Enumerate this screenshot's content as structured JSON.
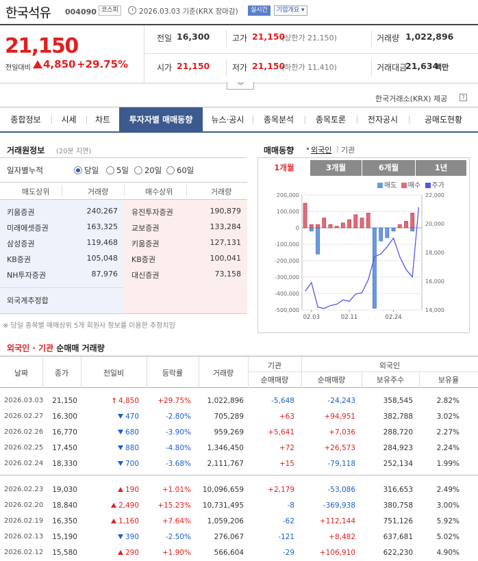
{
  "header": {
    "name": "한국석유",
    "code": "004090",
    "market": "코스피",
    "base_date": "2026.03.03 기준(KRX 장마감)",
    "realtime": "실시간",
    "company_info": "기업개요 ▾"
  },
  "price": {
    "current": "21,150",
    "compare_label": "전일대비",
    "change": "4,850",
    "change_pct": "+29.75%",
    "color_up": "#e02020",
    "color_down": "#1a5fc8"
  },
  "stats": [
    {
      "label": "전일",
      "value": "16,300",
      "sub": "",
      "color": "#333"
    },
    {
      "label": "고가",
      "value": "21,150",
      "sub": "(상한가 21,150)",
      "color": "#e02020"
    },
    {
      "label": "거래량",
      "value": "1,022,896",
      "sub": "",
      "color": "#333"
    },
    {
      "label": "시가",
      "value": "21,150",
      "sub": "",
      "color": "#e02020"
    },
    {
      "label": "저가",
      "value": "21,150",
      "sub": "(하한가 11,410)",
      "color": "#e02020"
    },
    {
      "label": "거래대금",
      "value": "21,634",
      "sub": "백만",
      "color": "#333"
    }
  ],
  "source": "한국거래소(KRX) 제공",
  "tabs": [
    "종합정보",
    "시세",
    "차트",
    "투자자별 매매동향",
    "뉴스·공시",
    "종목분석",
    "종목토론",
    "전자공시",
    "공매도현황"
  ],
  "active_tab": 3,
  "broker": {
    "title": "거래원정보",
    "delay": "(20분 지연)",
    "daily_label": "일자별누적",
    "periods": [
      "당일",
      "5일",
      "20일",
      "60일"
    ],
    "selected_period": 0,
    "headers": [
      "매도상위",
      "거래량",
      "매수상위",
      "거래량"
    ],
    "sell": [
      {
        "name": "키움증권",
        "vol": "240,267"
      },
      {
        "name": "미래에셋증권",
        "vol": "163,325"
      },
      {
        "name": "삼성증권",
        "vol": "119,468"
      },
      {
        "name": "KB증권",
        "vol": "105,048"
      },
      {
        "name": "NH투자증권",
        "vol": "87,976"
      }
    ],
    "buy": [
      {
        "name": "유진투자증권",
        "vol": "190,879"
      },
      {
        "name": "교보증권",
        "vol": "133,284"
      },
      {
        "name": "키움증권",
        "vol": "127,131"
      },
      {
        "name": "KB증권",
        "vol": "100,041"
      },
      {
        "name": "대신증권",
        "vol": "73,158"
      }
    ],
    "foreign_label": "외국계추정합",
    "note": "※ 당일 종목별 매매상위 5개 회원사 정보를 이용한 추정치임"
  },
  "chart_panel": {
    "title": "매매동향",
    "opt_foreign": "외국인",
    "opt_inst": "기관",
    "periods": [
      "1개월",
      "3개월",
      "6개월",
      "1년"
    ],
    "selected_period": 0,
    "legend": [
      "매도",
      "매수",
      "주가"
    ]
  },
  "chart_data": {
    "type": "bar",
    "categories": [
      "02.03",
      "",
      "",
      "",
      "",
      "",
      "02.11",
      "",
      "",
      "",
      "",
      "",
      "02.24",
      "",
      "",
      "",
      "",
      "",
      ""
    ],
    "x_ticks": [
      "02.03",
      "02.11",
      "02.24"
    ],
    "series": [
      {
        "name": "매도",
        "color": "#6b9ae0",
        "values": [
          0,
          -20000,
          -160000,
          0,
          0,
          0,
          0,
          0,
          0,
          0,
          0,
          -490000,
          -80000,
          -60000,
          -20000,
          0,
          0,
          -20000,
          0
        ]
      },
      {
        "name": "매수",
        "color": "#e06b7a",
        "values": [
          150000,
          20000,
          20000,
          60000,
          20000,
          10000,
          30000,
          50000,
          80000,
          60000,
          90000,
          0,
          0,
          0,
          0,
          20000,
          40000,
          90000,
          0
        ]
      },
      {
        "name": "주가",
        "color": "#5555ee",
        "values": [
          15300,
          15900,
          14200,
          14100,
          14300,
          14400,
          14700,
          14600,
          15100,
          15200,
          16100,
          17700,
          17900,
          18400,
          19000,
          17700,
          16800,
          16300,
          21150
        ]
      }
    ],
    "y_left": {
      "min": -500000,
      "max": 200000,
      "ticks": [
        "200,000",
        "100,000",
        "0",
        "-100,000",
        "-200,000",
        "-300,000",
        "-400,000",
        "-500,000"
      ]
    },
    "y_right": {
      "min": 14000,
      "max": 22000,
      "ticks": [
        "22,000",
        "20,000",
        "18,000",
        "16,000",
        "14,000"
      ]
    }
  },
  "table": {
    "title_a": "외국인 · 기관",
    "title_b": "순매매 거래량",
    "headers": [
      "날짜",
      "종가",
      "전일비",
      "등락률",
      "거래량",
      "기관",
      "순매매량",
      "외국인",
      "순매매량",
      "보유주수",
      "보유율"
    ],
    "rows": [
      {
        "date": "2026.03.03",
        "close": "21,150",
        "dir": "limit",
        "chg": "4,850",
        "pct": "+29.75%",
        "vol": "1,022,896",
        "inst": "-5,648",
        "frg": "-24,243",
        "hold": "358,545",
        "ratio": "2.82%"
      },
      {
        "date": "2026.02.27",
        "close": "16,300",
        "dir": "down",
        "chg": "470",
        "pct": "-2.80%",
        "vol": "705,289",
        "inst": "+63",
        "frg": "+94,951",
        "hold": "382,788",
        "ratio": "3.02%"
      },
      {
        "date": "2026.02.26",
        "close": "16,770",
        "dir": "down",
        "chg": "680",
        "pct": "-3.90%",
        "vol": "959,269",
        "inst": "+5,641",
        "frg": "+7,036",
        "hold": "288,720",
        "ratio": "2.27%"
      },
      {
        "date": "2026.02.25",
        "close": "17,450",
        "dir": "down",
        "chg": "880",
        "pct": "-4.80%",
        "vol": "1,346,450",
        "inst": "+72",
        "frg": "+26,573",
        "hold": "284,923",
        "ratio": "2.24%"
      },
      {
        "date": "2026.02.24",
        "close": "18,330",
        "dir": "down",
        "chg": "700",
        "pct": "-3.68%",
        "vol": "2,111,767",
        "inst": "+15",
        "frg": "-79,118",
        "hold": "252,134",
        "ratio": "1.99%"
      },
      {
        "date": "2026.02.23",
        "close": "19,030",
        "dir": "up",
        "chg": "190",
        "pct": "+1.01%",
        "vol": "10,096,659",
        "inst": "+2,179",
        "frg": "-53,086",
        "hold": "316,653",
        "ratio": "2.49%"
      },
      {
        "date": "2026.02.20",
        "close": "18,840",
        "dir": "up",
        "chg": "2,490",
        "pct": "+15.23%",
        "vol": "10,731,495",
        "inst": "-8",
        "frg": "-369,938",
        "hold": "380,758",
        "ratio": "3.00%"
      },
      {
        "date": "2026.02.19",
        "close": "16,350",
        "dir": "up",
        "chg": "1,160",
        "pct": "+7.64%",
        "vol": "1,059,206",
        "inst": "-62",
        "frg": "+112,144",
        "hold": "751,126",
        "ratio": "5.92%"
      },
      {
        "date": "2026.02.13",
        "close": "15,190",
        "dir": "down",
        "chg": "390",
        "pct": "-2.50%",
        "vol": "276,067",
        "inst": "-121",
        "frg": "+8,482",
        "hold": "637,681",
        "ratio": "5.02%"
      },
      {
        "date": "2026.02.12",
        "close": "15,580",
        "dir": "up",
        "chg": "290",
        "pct": "+1.90%",
        "vol": "566,604",
        "inst": "-29",
        "frg": "+106,910",
        "hold": "622,230",
        "ratio": "4.90%"
      }
    ]
  }
}
